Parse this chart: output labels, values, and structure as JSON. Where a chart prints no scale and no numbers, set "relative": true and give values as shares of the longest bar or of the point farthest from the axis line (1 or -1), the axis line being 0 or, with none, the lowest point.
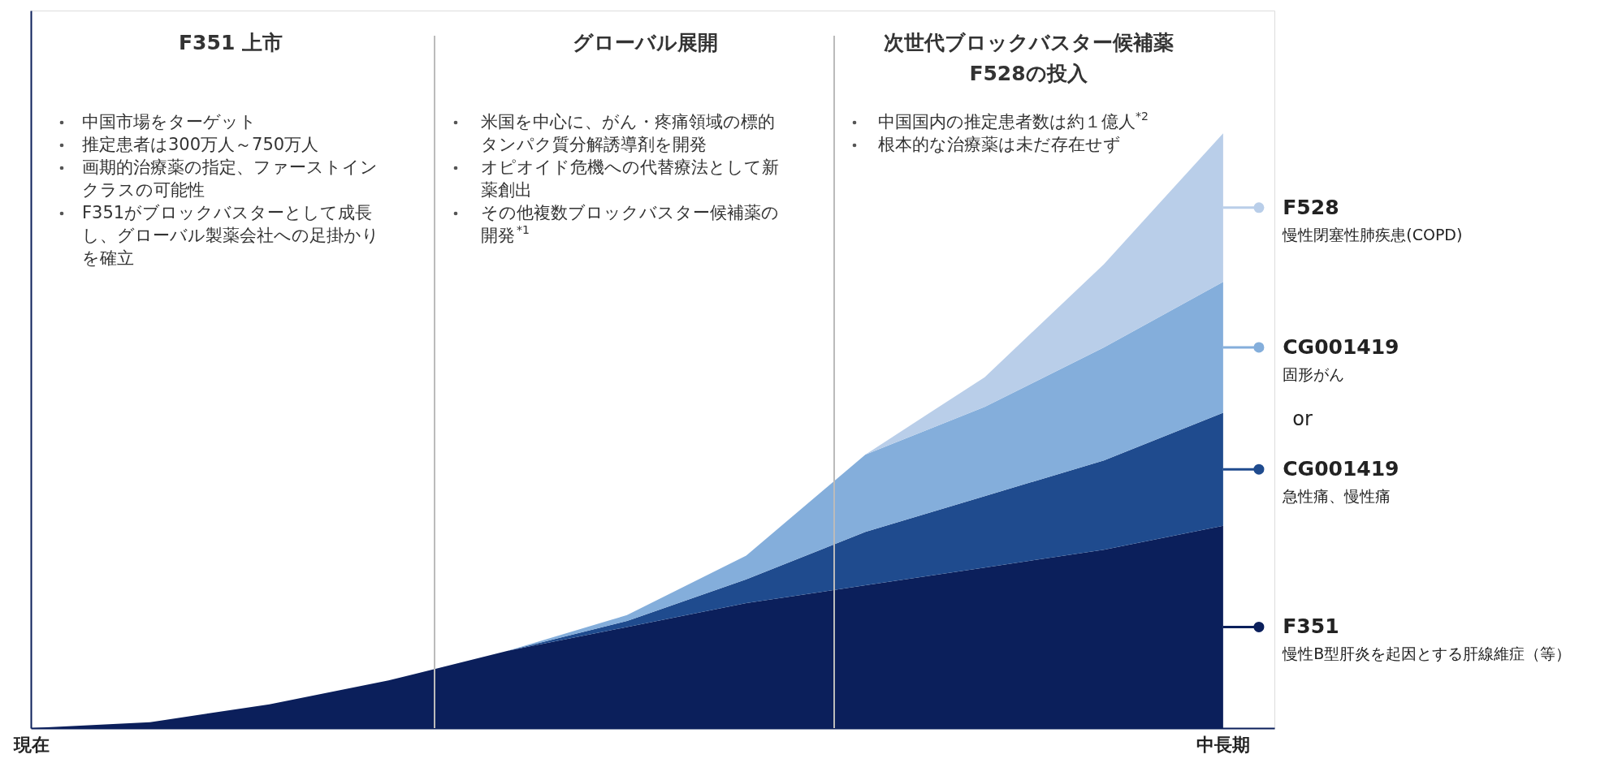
{
  "chart_data": {
    "type": "area",
    "relative": true,
    "stacked": true,
    "categories": [
      "現在",
      null,
      null,
      null,
      null,
      null,
      null,
      null,
      null,
      null,
      "中長期"
    ],
    "series": [
      {
        "name": "F351",
        "color": "#0b1f5b",
        "values": [
          0,
          0.01,
          0.04,
          0.08,
          0.13,
          0.17,
          0.21,
          0.24,
          0.27,
          0.3,
          0.34
        ]
      },
      {
        "name": "CG001419",
        "color": "#1f4b8e",
        "values": [
          0,
          0,
          0,
          0,
          0,
          0.01,
          0.04,
          0.09,
          0.12,
          0.15,
          0.19
        ]
      },
      {
        "name": "CG001419",
        "color": "#84aedb",
        "values": [
          0,
          0,
          0,
          0,
          0,
          0.01,
          0.04,
          0.13,
          0.15,
          0.19,
          0.22
        ]
      },
      {
        "name": "F528",
        "color": "#b9cee9",
        "values": [
          0,
          0,
          0,
          0,
          0,
          0,
          0,
          0,
          0.05,
          0.14,
          0.25
        ]
      }
    ],
    "legend": "right",
    "annotations": [
      "F351 上市",
      "中国市場をターゲット",
      "推定患者は300万人～750万人",
      "画期的治療薬の指定、ファーストインクラスの可能性",
      "F351がブロックバスターとして成長し、グローバル製薬会社への足掛かりを確立",
      "グローバル展開",
      "米国を中心に、がん・疼痛領域の標的タンパク質分解誘導剤を開発",
      "オピオイド危機への代替療法として新薬創出",
      "その他複数ブロックバスター候補薬の開発$^{*1}$",
      "次世代ブロックバスター候補薬",
      "F528の投入",
      "中国国内の推定患者数は約１億人$^{*2}$",
      "根本的な治療薬は未だ存在せず",
      "慢性B型肝炎を起因とする肝線維症（等）",
      "急性痛、慢性痛",
      "固形がん",
      "慢性閉塞性肺疾患(COPD)",
      "or"
    ]
  }
}
